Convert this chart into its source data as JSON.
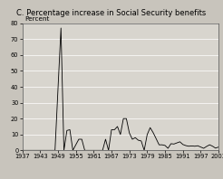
{
  "title": "C. Percentage increase in Social Security benefits",
  "ylabel": "Percent",
  "xlim": [
    1937,
    2003
  ],
  "ylim": [
    0,
    80
  ],
  "yticks": [
    0,
    10,
    20,
    30,
    40,
    50,
    60,
    70,
    80
  ],
  "xtick_labels": [
    "1937",
    "1943",
    "1949",
    "1955",
    "1961",
    "1967",
    "1973",
    "1979",
    "1985",
    "1991",
    "1997",
    "2003"
  ],
  "xtick_positions": [
    1937,
    1943,
    1949,
    1955,
    1961,
    1967,
    1973,
    1979,
    1985,
    1991,
    1997,
    2003
  ],
  "fig_bg_color": "#c8c4bc",
  "plot_bg_color": "#d8d5ce",
  "title_bg_color": "#b8b5ae",
  "line_color": "#000000",
  "grid_color": "#ffffff",
  "title_fontsize": 6.0,
  "tick_fontsize": 4.8,
  "ylabel_fontsize": 5.2,
  "data": [
    [
      1937,
      0
    ],
    [
      1940,
      0
    ],
    [
      1947,
      0
    ],
    [
      1948,
      0
    ],
    [
      1950,
      77
    ],
    [
      1951,
      0
    ],
    [
      1952,
      12.5
    ],
    [
      1953,
      13
    ],
    [
      1954,
      0
    ],
    [
      1956,
      7
    ],
    [
      1957,
      7
    ],
    [
      1958,
      0
    ],
    [
      1960,
      0
    ],
    [
      1961,
      0
    ],
    [
      1962,
      0
    ],
    [
      1964,
      0
    ],
    [
      1965,
      7
    ],
    [
      1966,
      0
    ],
    [
      1967,
      13
    ],
    [
      1968,
      13
    ],
    [
      1969,
      15
    ],
    [
      1970,
      10
    ],
    [
      1971,
      20
    ],
    [
      1972,
      20
    ],
    [
      1973,
      11
    ],
    [
      1974,
      7
    ],
    [
      1975,
      8
    ],
    [
      1976,
      6.4
    ],
    [
      1977,
      5.9
    ],
    [
      1978,
      0
    ],
    [
      1979,
      9.9
    ],
    [
      1980,
      14.3
    ],
    [
      1981,
      11.2
    ],
    [
      1982,
      7.4
    ],
    [
      1983,
      3.5
    ],
    [
      1984,
      3.5
    ],
    [
      1985,
      3.1
    ],
    [
      1986,
      1.3
    ],
    [
      1987,
      4.2
    ],
    [
      1988,
      4.0
    ],
    [
      1989,
      4.7
    ],
    [
      1990,
      5.4
    ],
    [
      1991,
      3.7
    ],
    [
      1992,
      3.0
    ],
    [
      1993,
      2.6
    ],
    [
      1994,
      2.8
    ],
    [
      1995,
      2.6
    ],
    [
      1996,
      2.9
    ],
    [
      1997,
      2.1
    ],
    [
      1998,
      1.3
    ],
    [
      1999,
      2.5
    ],
    [
      2000,
      3.5
    ],
    [
      2001,
      2.6
    ],
    [
      2002,
      1.4
    ],
    [
      2003,
      2.1
    ]
  ]
}
